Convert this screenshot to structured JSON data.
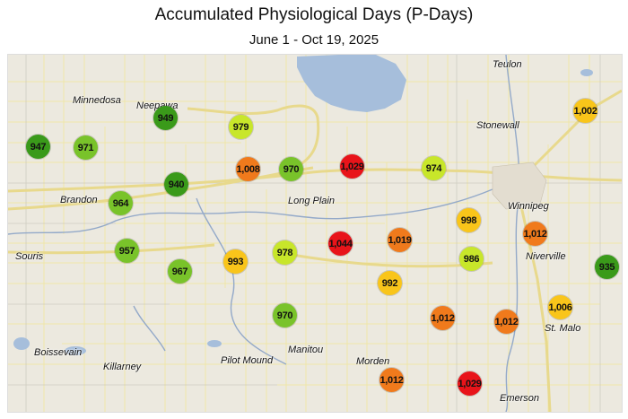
{
  "title": "Accumulated Physiological Days (P-Days)",
  "subtitle": "June 1 - Oct 19, 2025",
  "colors": {
    "dark_green": "#3a9a1a",
    "green": "#79c32a",
    "yellow_green": "#c8e62a",
    "yellow": "#f9c51a",
    "orange": "#f07a1c",
    "red": "#e8141a",
    "land": "#ece9df",
    "water": "#a6bedb",
    "highway": "#efe3a0",
    "road": "#f3eaa8"
  },
  "towns": [
    {
      "name": "Teulon"
    },
    {
      "name": "Minnedosa"
    },
    {
      "name": "Neepawa"
    },
    {
      "name": "Stonewall"
    },
    {
      "name": "Winnipeg"
    },
    {
      "name": "Brandon"
    },
    {
      "name": "Long Plain"
    },
    {
      "name": "Souris"
    },
    {
      "name": "Niverville"
    },
    {
      "name": "St. Malo"
    },
    {
      "name": "Boissevain"
    },
    {
      "name": "Killarney"
    },
    {
      "name": "Pilot Mound"
    },
    {
      "name": "Manitou"
    },
    {
      "name": "Morden"
    },
    {
      "name": "Emerson"
    }
  ],
  "stations": [
    {
      "value": "947",
      "p_days": 947,
      "color": "#3a9a1a"
    },
    {
      "value": "971",
      "p_days": 971,
      "color": "#79c32a"
    },
    {
      "value": "949",
      "p_days": 949,
      "color": "#3a9a1a"
    },
    {
      "value": "979",
      "p_days": 979,
      "color": "#c8e62a"
    },
    {
      "value": "1,008",
      "p_days": 1008,
      "color": "#f07a1c"
    },
    {
      "value": "970",
      "p_days": 970,
      "color": "#79c32a"
    },
    {
      "value": "1,029",
      "p_days": 1029,
      "color": "#e8141a"
    },
    {
      "value": "974",
      "p_days": 974,
      "color": "#c8e62a"
    },
    {
      "value": "1,002",
      "p_days": 1002,
      "color": "#f9c51a"
    },
    {
      "value": "940",
      "p_days": 940,
      "color": "#3a9a1a"
    },
    {
      "value": "964",
      "p_days": 964,
      "color": "#79c32a"
    },
    {
      "value": "998",
      "p_days": 998,
      "color": "#f9c51a"
    },
    {
      "value": "1,012",
      "p_days": 1012,
      "color": "#f07a1c"
    },
    {
      "value": "957",
      "p_days": 957,
      "color": "#79c32a"
    },
    {
      "value": "967",
      "p_days": 967,
      "color": "#79c32a"
    },
    {
      "value": "993",
      "p_days": 993,
      "color": "#f9c51a"
    },
    {
      "value": "978",
      "p_days": 978,
      "color": "#c8e62a"
    },
    {
      "value": "1,044",
      "p_days": 1044,
      "color": "#e8141a"
    },
    {
      "value": "1,019",
      "p_days": 1019,
      "color": "#f07a1c"
    },
    {
      "value": "986",
      "p_days": 986,
      "color": "#c8e62a"
    },
    {
      "value": "935",
      "p_days": 935,
      "color": "#3a9a1a"
    },
    {
      "value": "992",
      "p_days": 992,
      "color": "#f9c51a"
    },
    {
      "value": "1,006",
      "p_days": 1006,
      "color": "#f9c51a"
    },
    {
      "value": "970",
      "p_days": 970,
      "color": "#79c32a"
    },
    {
      "value": "1,012",
      "p_days": 1012,
      "color": "#f07a1c"
    },
    {
      "value": "1,012",
      "p_days": 1012,
      "color": "#f07a1c"
    },
    {
      "value": "1,012",
      "p_days": 1012,
      "color": "#f07a1c"
    },
    {
      "value": "1,029",
      "p_days": 1029,
      "color": "#e8141a"
    }
  ]
}
